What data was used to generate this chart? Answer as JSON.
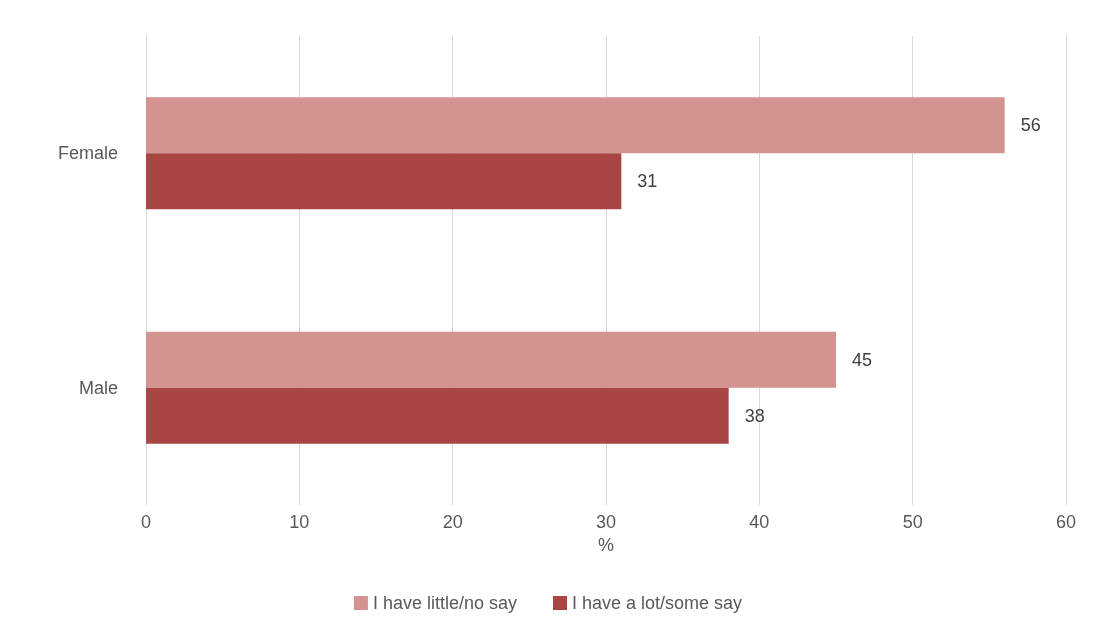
{
  "chart_data": {
    "type": "bar",
    "orientation": "horizontal",
    "categories": [
      "Female",
      "Male"
    ],
    "series": [
      {
        "name": "I have little/no say",
        "color": "#d29391",
        "values": [
          56,
          45
        ]
      },
      {
        "name": "I have a lot/some say",
        "color": "#a94644",
        "values": [
          31,
          38
        ]
      }
    ],
    "xlabel": "%",
    "xlim": [
      0,
      60
    ],
    "xticks": [
      0,
      10,
      20,
      30,
      40,
      50,
      60
    ],
    "grid": "x",
    "legend": "bottom",
    "data_labels": true
  }
}
